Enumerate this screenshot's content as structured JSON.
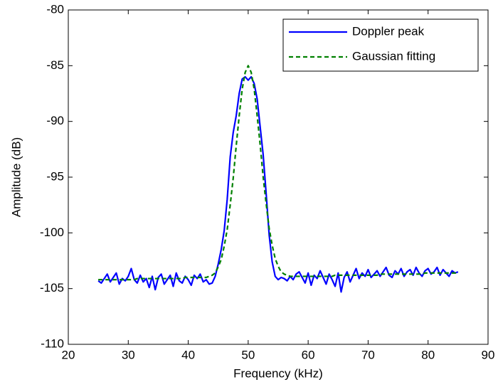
{
  "chart_data": {
    "type": "line",
    "x": [
      25,
      25.5,
      26,
      26.5,
      27,
      27.5,
      28,
      28.5,
      29,
      29.5,
      30,
      30.5,
      31,
      31.5,
      32,
      32.5,
      33,
      33.5,
      34,
      34.5,
      35,
      35.5,
      36,
      36.5,
      37,
      37.5,
      38,
      38.5,
      39,
      39.5,
      40,
      40.5,
      41,
      41.5,
      42,
      42.5,
      43,
      43.5,
      44,
      44.5,
      45,
      45.5,
      46,
      46.5,
      47,
      47.5,
      48,
      48.5,
      49,
      49.5,
      50,
      50.5,
      51,
      51.5,
      52,
      52.5,
      53,
      53.5,
      54,
      54.5,
      55,
      55.5,
      56,
      56.5,
      57,
      57.5,
      58,
      58.5,
      59,
      59.5,
      60,
      60.5,
      61,
      61.5,
      62,
      62.5,
      63,
      63.5,
      64,
      64.5,
      65,
      65.5,
      66,
      66.5,
      67,
      67.5,
      68,
      68.5,
      69,
      69.5,
      70,
      70.5,
      71,
      71.5,
      72,
      72.5,
      73,
      73.5,
      74,
      74.5,
      75,
      75.5,
      76,
      76.5,
      77,
      77.5,
      78,
      78.5,
      79,
      79.5,
      80,
      80.5,
      81,
      81.5,
      82,
      82.5,
      83,
      83.5,
      84,
      84.5,
      85
    ],
    "series": [
      {
        "name": "Doppler peak",
        "color": "#0000ff",
        "dash": false,
        "values": [
          -104.3,
          -104.5,
          -104.1,
          -103.7,
          -104.4,
          -104.0,
          -103.6,
          -104.6,
          -104.1,
          -104.3,
          -103.9,
          -103.2,
          -104.2,
          -104.5,
          -103.8,
          -104.4,
          -104.1,
          -104.9,
          -103.9,
          -105.1,
          -104.0,
          -103.7,
          -104.6,
          -104.2,
          -103.8,
          -104.8,
          -103.6,
          -104.3,
          -104.5,
          -103.9,
          -104.2,
          -104.7,
          -103.8,
          -104.1,
          -103.7,
          -104.4,
          -104.2,
          -104.6,
          -104.5,
          -103.9,
          -102.8,
          -101.5,
          -99.8,
          -97.0,
          -93.2,
          -91.0,
          -89.5,
          -87.5,
          -86.2,
          -86.0,
          -86.3,
          -86.0,
          -86.6,
          -88.0,
          -90.5,
          -93.0,
          -96.5,
          -100.2,
          -102.6,
          -103.9,
          -104.2,
          -104.0,
          -104.1,
          -104.3,
          -103.9,
          -104.2,
          -103.7,
          -103.5,
          -104.0,
          -104.5,
          -103.6,
          -104.7,
          -103.8,
          -104.1,
          -103.4,
          -104.0,
          -104.6,
          -103.7,
          -104.2,
          -104.8,
          -103.6,
          -105.3,
          -104.0,
          -103.5,
          -104.4,
          -103.8,
          -103.2,
          -104.1,
          -103.6,
          -103.9,
          -103.3,
          -104.0,
          -103.7,
          -103.4,
          -103.9,
          -103.5,
          -103.1,
          -103.8,
          -104.0,
          -103.4,
          -103.7,
          -103.2,
          -103.9,
          -103.5,
          -103.3,
          -103.8,
          -103.1,
          -103.6,
          -103.9,
          -103.4,
          -103.2,
          -103.7,
          -103.5,
          -103.1,
          -103.8,
          -103.3,
          -103.6,
          -103.9,
          -103.4,
          -103.6,
          -103.5
        ]
      },
      {
        "name": "Gaussian fitting",
        "color": "#008000",
        "dash": true,
        "values": [
          -104.2,
          -104.2,
          -104.2,
          -104.2,
          -104.2,
          -104.2,
          -104.2,
          -104.2,
          -104.2,
          -104.2,
          -104.2,
          -104.2,
          -104.2,
          -104.1,
          -104.1,
          -104.1,
          -104.1,
          -104.1,
          -104.1,
          -104.1,
          -104.1,
          -104.1,
          -104.1,
          -104.1,
          -104.1,
          -104.1,
          -104.1,
          -104.1,
          -104.1,
          -104.0,
          -104.0,
          -104.0,
          -104.0,
          -104.0,
          -104.0,
          -104.0,
          -104.0,
          -103.9,
          -103.8,
          -103.6,
          -103.05,
          -102.4,
          -101.2,
          -99.7,
          -97.5,
          -95.1,
          -92.2,
          -89.5,
          -87.1,
          -85.6,
          -85.0,
          -85.6,
          -87.1,
          -89.5,
          -92.1,
          -95.0,
          -97.4,
          -99.6,
          -101.1,
          -102.3,
          -103.0,
          -103.5,
          -103.7,
          -103.8,
          -103.9,
          -103.9,
          -103.9,
          -103.9,
          -103.9,
          -103.9,
          -103.9,
          -103.9,
          -103.9,
          -103.9,
          -103.9,
          -103.9,
          -103.9,
          -103.9,
          -103.9,
          -103.8,
          -103.8,
          -103.8,
          -103.8,
          -103.8,
          -103.8,
          -103.8,
          -103.8,
          -103.8,
          -103.8,
          -103.8,
          -103.8,
          -103.8,
          -103.8,
          -103.8,
          -103.7,
          -103.7,
          -103.7,
          -103.7,
          -103.7,
          -103.7,
          -103.7,
          -103.7,
          -103.7,
          -103.7,
          -103.7,
          -103.7,
          -103.7,
          -103.7,
          -103.7,
          -103.6,
          -103.6,
          -103.6,
          -103.6,
          -103.6,
          -103.6,
          -103.6,
          -103.6,
          -103.6,
          -103.6,
          -103.6,
          -103.6
        ]
      }
    ],
    "xlabel": "Frequency (kHz)",
    "ylabel": "Amplitude (dB)",
    "xlim": [
      20,
      90
    ],
    "xticks": [
      20,
      30,
      40,
      50,
      60,
      70,
      80,
      90
    ],
    "ylim": [
      -110,
      -80
    ],
    "yticks": [
      -110,
      -105,
      -100,
      -95,
      -90,
      -85,
      -80
    ],
    "legend": "upper right"
  }
}
